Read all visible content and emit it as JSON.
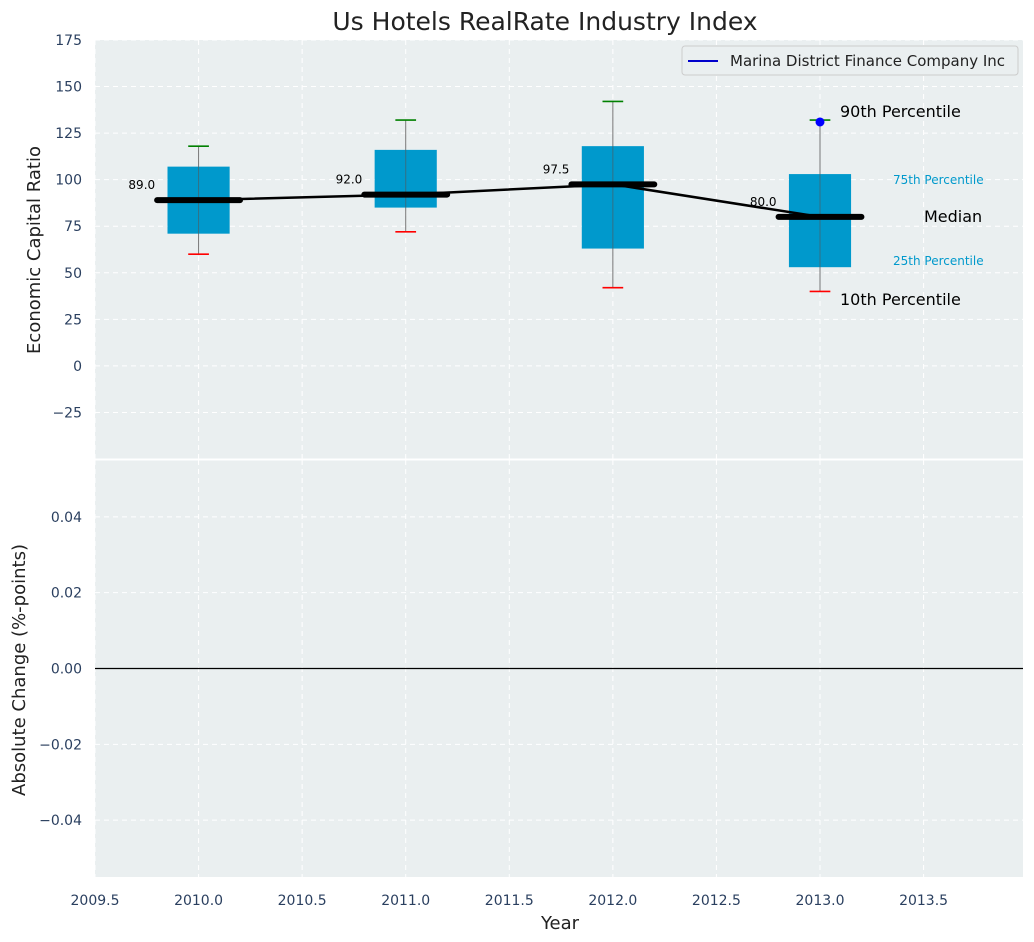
{
  "chart_data": {
    "type": "box",
    "title": "Us Hotels RealRate Industry Index",
    "xlabel": "Year",
    "x_ticks": [
      "2009.5",
      "2010.0",
      "2010.5",
      "2011.0",
      "2011.5",
      "2012.0",
      "2012.5",
      "2013.0",
      "2013.5"
    ],
    "x_tick_values": [
      2009.5,
      2010.0,
      2010.5,
      2011.0,
      2011.5,
      2012.0,
      2012.5,
      2013.0,
      2013.5
    ],
    "xlim": [
      2009.5,
      2013.98
    ],
    "grid": true,
    "top": {
      "ylabel": "Economic Capital Ratio",
      "ylim": [
        -50,
        175
      ],
      "y_ticks": [
        "175",
        "150",
        "125",
        "100",
        "75",
        "50",
        "25",
        "0",
        "−25"
      ],
      "y_tick_values": [
        175,
        150,
        125,
        100,
        75,
        50,
        25,
        0,
        -25
      ],
      "boxes": [
        {
          "year": 2010,
          "p10": 60,
          "p25": 71,
          "median": 89,
          "p75": 107,
          "p90": 118,
          "median_label": "89.0"
        },
        {
          "year": 2011,
          "p10": 72,
          "p25": 85,
          "median": 92,
          "p75": 116,
          "p90": 132,
          "median_label": "92.0"
        },
        {
          "year": 2012,
          "p10": 42,
          "p25": 63,
          "median": 97.5,
          "p75": 118,
          "p90": 142,
          "median_label": "97.5"
        },
        {
          "year": 2013,
          "p10": 40,
          "p25": 53,
          "median": 80,
          "p75": 103,
          "p90": 132,
          "median_label": "80.0"
        }
      ],
      "company_points": [
        {
          "year": 2013,
          "value": 131
        }
      ],
      "legend": {
        "label": "Marina District Finance Company Inc",
        "position": "top-right"
      },
      "annotations": {
        "p90": "90th Percentile",
        "p75": "75th Percentile",
        "median": "Median",
        "p25": "25th Percentile",
        "p10": "10th Percentile"
      }
    },
    "bottom": {
      "ylabel": "Absolute Change (%-points)",
      "ylim": [
        -0.055,
        0.055
      ],
      "y_ticks": [
        "0.04",
        "0.02",
        "0.00",
        "−0.02",
        "−0.04"
      ],
      "y_tick_values": [
        0.04,
        0.02,
        0.0,
        -0.02,
        -0.04
      ],
      "zero_line": 0.0
    }
  },
  "colors": {
    "background": "#eaeff0",
    "box": "#0099cc",
    "median": "#000000",
    "p90_whisker": "#008000",
    "p10_whisker": "#ff0000",
    "company": "#0000ff",
    "percentile_text": "#0099cc",
    "tick_text": "#2a3f5f"
  }
}
